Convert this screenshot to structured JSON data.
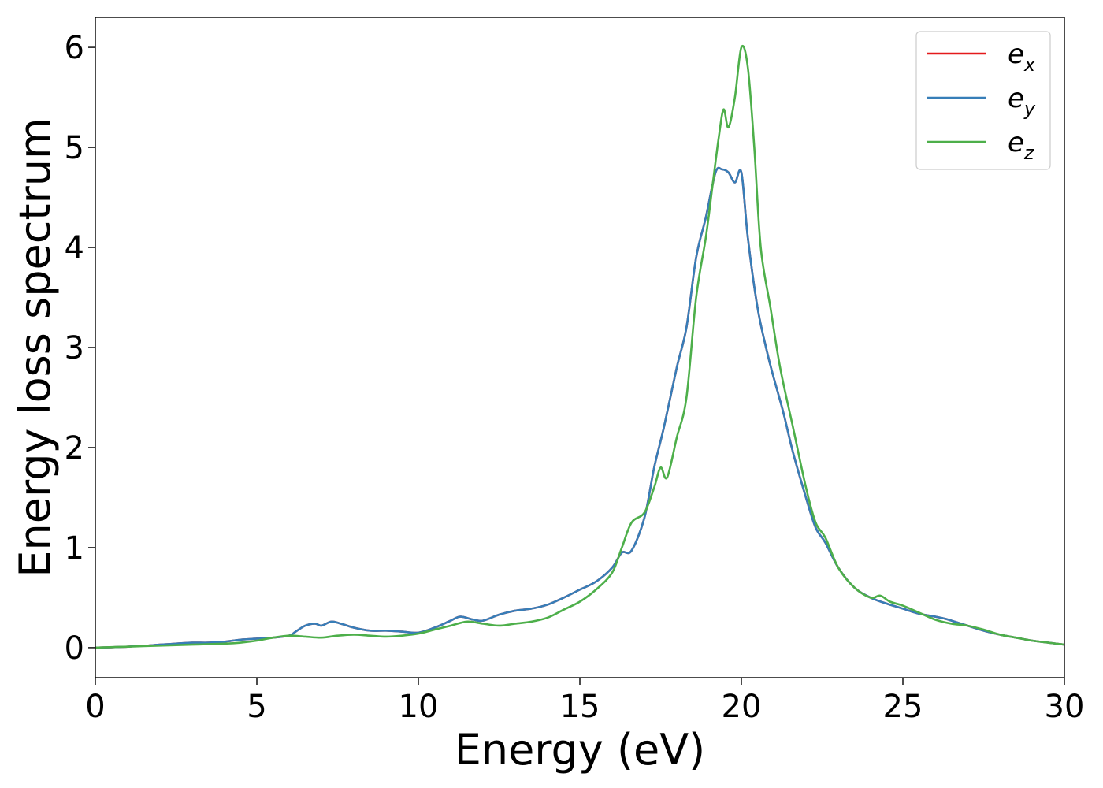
{
  "chart_data": {
    "type": "line",
    "title": "",
    "xlabel": "Energy (eV)",
    "ylabel": "Energy loss spectrum",
    "xlim": [
      0,
      30
    ],
    "ylim": [
      -0.3,
      6.3
    ],
    "xticks": [
      0,
      5,
      10,
      15,
      20,
      25,
      30
    ],
    "xtick_labels": [
      "0",
      "5",
      "10",
      "15",
      "20",
      "25",
      "30"
    ],
    "yticks": [
      0,
      1,
      2,
      3,
      4,
      5,
      6
    ],
    "ytick_labels": [
      "0",
      "1",
      "2",
      "3",
      "4",
      "5",
      "6"
    ],
    "grid": false,
    "legend_position": "top-right",
    "series": [
      {
        "name": "e_x",
        "base": "e",
        "sub": "x",
        "color": "#e41a1c",
        "x": [
          0,
          1,
          1.3,
          1.6,
          2,
          2.5,
          3,
          3.5,
          4,
          4.5,
          5,
          5.5,
          6,
          6.2,
          6.5,
          6.8,
          7,
          7.3,
          7.6,
          8,
          8.5,
          9,
          9.5,
          10,
          10.5,
          11,
          11.3,
          11.7,
          12,
          12.5,
          13,
          13.5,
          14,
          14.5,
          15,
          15.5,
          16,
          16.3,
          16.6,
          17,
          17.3,
          17.6,
          18,
          18.3,
          18.6,
          18.9,
          19.2,
          19.4,
          19.6,
          19.8,
          20,
          20.2,
          20.5,
          20.8,
          21,
          21.3,
          21.6,
          22,
          22.3,
          22.6,
          23,
          23.5,
          24,
          24.5,
          25,
          25.5,
          26,
          26.3,
          26.6,
          27,
          27.5,
          28,
          28.5,
          29,
          29.5,
          30
        ],
        "y": [
          0,
          0.01,
          0.02,
          0.02,
          0.03,
          0.04,
          0.05,
          0.05,
          0.06,
          0.08,
          0.09,
          0.1,
          0.12,
          0.16,
          0.22,
          0.24,
          0.22,
          0.26,
          0.24,
          0.2,
          0.17,
          0.17,
          0.16,
          0.15,
          0.2,
          0.27,
          0.31,
          0.28,
          0.27,
          0.33,
          0.37,
          0.39,
          0.43,
          0.5,
          0.58,
          0.66,
          0.8,
          0.95,
          0.97,
          1.3,
          1.8,
          2.2,
          2.8,
          3.2,
          3.9,
          4.3,
          4.75,
          4.78,
          4.75,
          4.65,
          4.75,
          4.1,
          3.4,
          2.95,
          2.7,
          2.35,
          1.95,
          1.5,
          1.2,
          1.05,
          0.8,
          0.6,
          0.5,
          0.44,
          0.39,
          0.34,
          0.31,
          0.29,
          0.26,
          0.22,
          0.17,
          0.13,
          0.1,
          0.07,
          0.05,
          0.03
        ]
      },
      {
        "name": "e_y",
        "base": "e",
        "sub": "y",
        "color": "#377eb8",
        "x": [
          0,
          1,
          1.3,
          1.6,
          2,
          2.5,
          3,
          3.5,
          4,
          4.5,
          5,
          5.5,
          6,
          6.2,
          6.5,
          6.8,
          7,
          7.3,
          7.6,
          8,
          8.5,
          9,
          9.5,
          10,
          10.5,
          11,
          11.3,
          11.7,
          12,
          12.5,
          13,
          13.5,
          14,
          14.5,
          15,
          15.5,
          16,
          16.3,
          16.6,
          17,
          17.3,
          17.6,
          18,
          18.3,
          18.6,
          18.9,
          19.2,
          19.4,
          19.6,
          19.8,
          20,
          20.2,
          20.5,
          20.8,
          21,
          21.3,
          21.6,
          22,
          22.3,
          22.6,
          23,
          23.5,
          24,
          24.5,
          25,
          25.5,
          26,
          26.3,
          26.6,
          27,
          27.5,
          28,
          28.5,
          29,
          29.5,
          30
        ],
        "y": [
          0,
          0.01,
          0.02,
          0.02,
          0.03,
          0.04,
          0.05,
          0.05,
          0.06,
          0.08,
          0.09,
          0.1,
          0.12,
          0.16,
          0.22,
          0.24,
          0.22,
          0.26,
          0.24,
          0.2,
          0.17,
          0.17,
          0.16,
          0.15,
          0.2,
          0.27,
          0.31,
          0.28,
          0.27,
          0.33,
          0.37,
          0.39,
          0.43,
          0.5,
          0.58,
          0.66,
          0.8,
          0.95,
          0.97,
          1.3,
          1.8,
          2.2,
          2.8,
          3.2,
          3.9,
          4.3,
          4.75,
          4.78,
          4.75,
          4.65,
          4.75,
          4.1,
          3.4,
          2.95,
          2.7,
          2.35,
          1.95,
          1.5,
          1.2,
          1.05,
          0.8,
          0.6,
          0.5,
          0.44,
          0.39,
          0.34,
          0.31,
          0.29,
          0.26,
          0.22,
          0.17,
          0.13,
          0.1,
          0.07,
          0.05,
          0.03
        ]
      },
      {
        "name": "e_z",
        "base": "e",
        "sub": "z",
        "color": "#4daf4a",
        "x": [
          0,
          1,
          2,
          3,
          4,
          4.5,
          5,
          5.5,
          6,
          6.5,
          7,
          7.5,
          8,
          8.5,
          9,
          9.5,
          10,
          10.5,
          11,
          11.5,
          12,
          12.5,
          13,
          13.5,
          14,
          14.5,
          15,
          15.5,
          16,
          16.3,
          16.6,
          17,
          17.3,
          17.5,
          17.7,
          18,
          18.3,
          18.6,
          18.9,
          19.1,
          19.3,
          19.45,
          19.6,
          19.8,
          20,
          20.2,
          20.4,
          20.6,
          20.9,
          21.2,
          21.6,
          22,
          22.3,
          22.6,
          23,
          23.5,
          24,
          24.3,
          24.6,
          25,
          25.5,
          26,
          26.5,
          27,
          27.5,
          28,
          28.5,
          29,
          29.5,
          30
        ],
        "y": [
          0,
          0.01,
          0.02,
          0.03,
          0.04,
          0.05,
          0.07,
          0.1,
          0.12,
          0.11,
          0.1,
          0.12,
          0.13,
          0.12,
          0.11,
          0.12,
          0.14,
          0.18,
          0.22,
          0.26,
          0.24,
          0.22,
          0.24,
          0.26,
          0.3,
          0.38,
          0.46,
          0.58,
          0.75,
          1.0,
          1.25,
          1.35,
          1.6,
          1.8,
          1.7,
          2.1,
          2.5,
          3.5,
          4.1,
          4.6,
          5.1,
          5.38,
          5.2,
          5.5,
          6.0,
          5.8,
          5.0,
          4.0,
          3.4,
          2.8,
          2.2,
          1.6,
          1.25,
          1.1,
          0.8,
          0.6,
          0.5,
          0.52,
          0.46,
          0.42,
          0.35,
          0.28,
          0.24,
          0.22,
          0.18,
          0.13,
          0.1,
          0.07,
          0.05,
          0.03
        ]
      }
    ]
  }
}
